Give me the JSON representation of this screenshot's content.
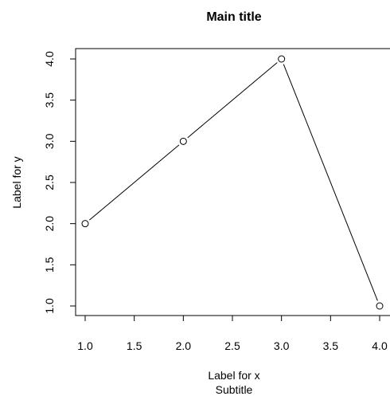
{
  "chart_data": {
    "type": "line",
    "title": "Main title",
    "subtitle": "Subtitle",
    "xlabel": "Label for x",
    "ylabel": "Label for y",
    "x": [
      1,
      2,
      3,
      4
    ],
    "y": [
      2,
      3,
      4,
      1
    ],
    "marker": "open-circle",
    "xlim": [
      1,
      4
    ],
    "ylim": [
      1,
      4
    ],
    "xticks": [
      "1.0",
      "1.5",
      "2.0",
      "2.5",
      "3.0",
      "3.5",
      "4.0"
    ],
    "yticks": [
      "1.0",
      "1.5",
      "2.0",
      "2.5",
      "3.0",
      "3.5",
      "4.0"
    ],
    "grid": false,
    "line_color": "#000000"
  }
}
